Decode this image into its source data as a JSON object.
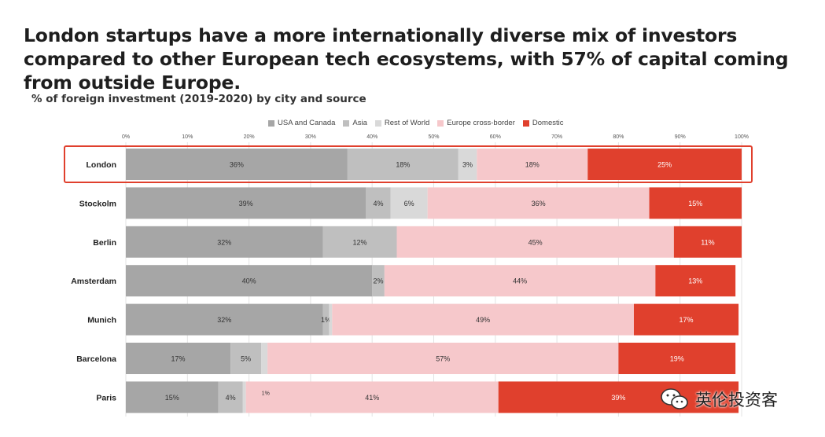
{
  "headline": "London startups have a more internationally diverse mix of investors compared to other European tech ecosystems, with 57% of capital coming from outside Europe.",
  "subtitle": "% of foreign investment (2019-2020) by city and source",
  "watermark": "英伦投资客",
  "chart_data": {
    "type": "bar",
    "orientation": "horizontal",
    "stacked": true,
    "title": "% of foreign investment (2019-2020) by city and source",
    "xlim": [
      0,
      100
    ],
    "x_ticks": [
      "0%",
      "10%",
      "20%",
      "30%",
      "40%",
      "50%",
      "60%",
      "70%",
      "80%",
      "90%",
      "100%"
    ],
    "highlighted_category": "London",
    "legend_position": "top-center",
    "categories": [
      "London",
      "Stockolm",
      "Berlin",
      "Amsterdam",
      "Munich",
      "Barcelona",
      "Paris"
    ],
    "series": [
      {
        "name": "USA and Canada",
        "color": "#a6a6a6",
        "values": [
          36,
          39,
          32,
          40,
          32,
          17,
          15
        ],
        "labels": [
          "36%",
          "39%",
          "32%",
          "40%",
          "32%",
          "17%",
          "15%"
        ]
      },
      {
        "name": "Asia",
        "color": "#bfbfbf",
        "values": [
          18,
          4,
          12,
          2,
          1,
          5,
          4
        ],
        "labels": [
          "18%",
          "4%",
          "12%",
          "2%",
          "1%",
          "5%",
          "4%"
        ]
      },
      {
        "name": "Rest of World",
        "color": "#d9d9d9",
        "values": [
          3,
          6,
          0,
          0,
          0.5,
          1,
          0.5
        ],
        "labels": [
          "3%",
          "6%",
          "",
          "",
          "",
          "",
          ""
        ]
      },
      {
        "name": "Europe cross-border",
        "color": "#f6c8cb",
        "values": [
          18,
          36,
          45,
          44,
          49,
          57,
          41
        ],
        "labels": [
          "18%",
          "36%",
          "45%",
          "44%",
          "49%",
          "57%",
          "41%"
        ]
      },
      {
        "name": "Domestic",
        "color": "#e0402d",
        "values": [
          25,
          15,
          11,
          13,
          17,
          19,
          39
        ],
        "labels": [
          "25%",
          "15%",
          "11%",
          "13%",
          "17%",
          "19%",
          "39%"
        ]
      }
    ],
    "annotations": [
      {
        "category": "Paris",
        "text": "1%"
      }
    ]
  }
}
